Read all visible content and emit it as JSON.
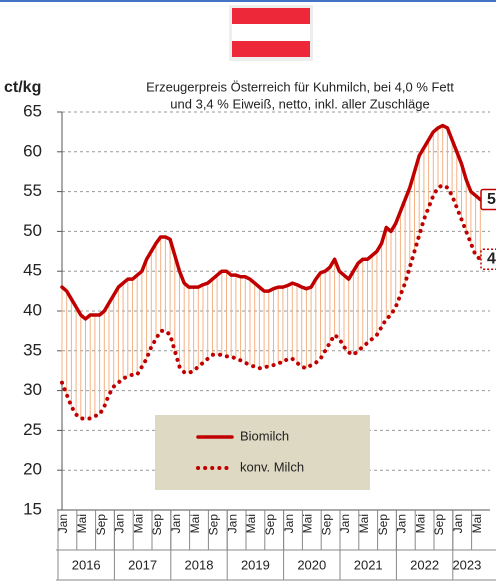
{
  "chart_data": {
    "type": "line",
    "title": "Erzeugerpreis Österreich für Kuhmilch, bei 4,0 % Fett",
    "subtitle": "und 3,4 % Eiweiß, netto, inkl. aller Zuschläge",
    "ylabel": "ct/kg",
    "categories": [
      "Jan",
      null,
      null,
      null,
      "Mai",
      null,
      null,
      null,
      "Sep",
      null,
      null,
      null,
      "Jan",
      null,
      null,
      null,
      "Mai",
      null,
      null,
      null,
      "Sep",
      null,
      null,
      null,
      "Jan",
      null,
      null,
      null,
      "Mai",
      null,
      null,
      null,
      "Sep",
      null,
      null,
      null,
      "Jan",
      null,
      null,
      null,
      "Mai",
      null,
      null,
      null,
      "Sep",
      null,
      null,
      null,
      "Jan",
      null,
      null,
      null,
      "Mai",
      null,
      null,
      null,
      "Sep",
      null,
      null,
      null,
      "Jan",
      null,
      null,
      null,
      "Mai",
      null,
      null,
      null,
      "Sep",
      null,
      null,
      null,
      "Jan",
      null,
      null,
      null,
      "Mai",
      null,
      null,
      null,
      "Sep",
      null,
      null,
      null,
      "Jan",
      null,
      null,
      null,
      "Mai",
      null
    ],
    "years": [
      "2016",
      "2017",
      "2018",
      "2019",
      "2020",
      "2021",
      "2022",
      "2023"
    ],
    "series": [
      {
        "name": "Biomilch",
        "color": "#c00000",
        "style": "solid",
        "values": [
          43,
          42.5,
          41.5,
          40.5,
          39.5,
          39,
          39.5,
          39.5,
          39.5,
          40,
          41,
          42,
          43,
          43.5,
          44,
          44,
          44.5,
          45,
          46.5,
          47.5,
          48.5,
          49.3,
          49.3,
          49,
          47,
          45,
          43.5,
          43,
          43,
          43,
          43.3,
          43.5,
          44,
          44.5,
          45,
          45,
          44.5,
          44.5,
          44.3,
          44.3,
          44,
          43.5,
          43,
          42.5,
          42.5,
          42.8,
          43,
          43,
          43.2,
          43.5,
          43.3,
          43,
          42.8,
          43,
          44,
          44.8,
          45,
          45.5,
          46.5,
          45,
          44.5,
          44,
          45,
          46,
          46.5,
          46.5,
          47,
          47.5,
          48.5,
          50.5,
          50,
          51,
          52.5,
          54,
          55.5,
          57.5,
          59.5,
          60.5,
          61.5,
          62.5,
          63,
          63.3,
          63,
          61.5,
          60,
          58.5,
          56.5,
          55,
          54.5,
          54
        ]
      },
      {
        "name": "konv. Milch",
        "color": "#c00000",
        "style": "dotted",
        "values": [
          31,
          29.5,
          28,
          27,
          26.5,
          26.5,
          26.5,
          26.8,
          27,
          28,
          29.5,
          30.5,
          31,
          31.5,
          31.8,
          32,
          32,
          33,
          34,
          35.5,
          36.5,
          37.5,
          37.5,
          37,
          35,
          33,
          32.3,
          32.2,
          32.5,
          33,
          33.5,
          34,
          34.5,
          34.5,
          34.5,
          34.3,
          34.3,
          34,
          33.8,
          33.5,
          33.2,
          33,
          32.8,
          33,
          33,
          33.2,
          33.5,
          33.5,
          34,
          34,
          33.5,
          33,
          32.8,
          33.2,
          33.5,
          34,
          35,
          36,
          37,
          36.5,
          35.5,
          34.8,
          34.5,
          35,
          35.5,
          36,
          36.5,
          37,
          38,
          39,
          39.5,
          40.5,
          42,
          43.5,
          45.5,
          47.5,
          49.5,
          51.5,
          53,
          54.5,
          55.5,
          55.8,
          55.5,
          54.5,
          53,
          51.5,
          50,
          48.5,
          47,
          46.5
        ]
      }
    ],
    "spread_color": "#f4b183",
    "end_labels": [
      "5",
      "4"
    ],
    "ylim": [
      15,
      65
    ],
    "yticks": [
      15,
      20,
      25,
      30,
      35,
      40,
      45,
      50,
      55,
      60,
      65
    ],
    "grid": true
  }
}
